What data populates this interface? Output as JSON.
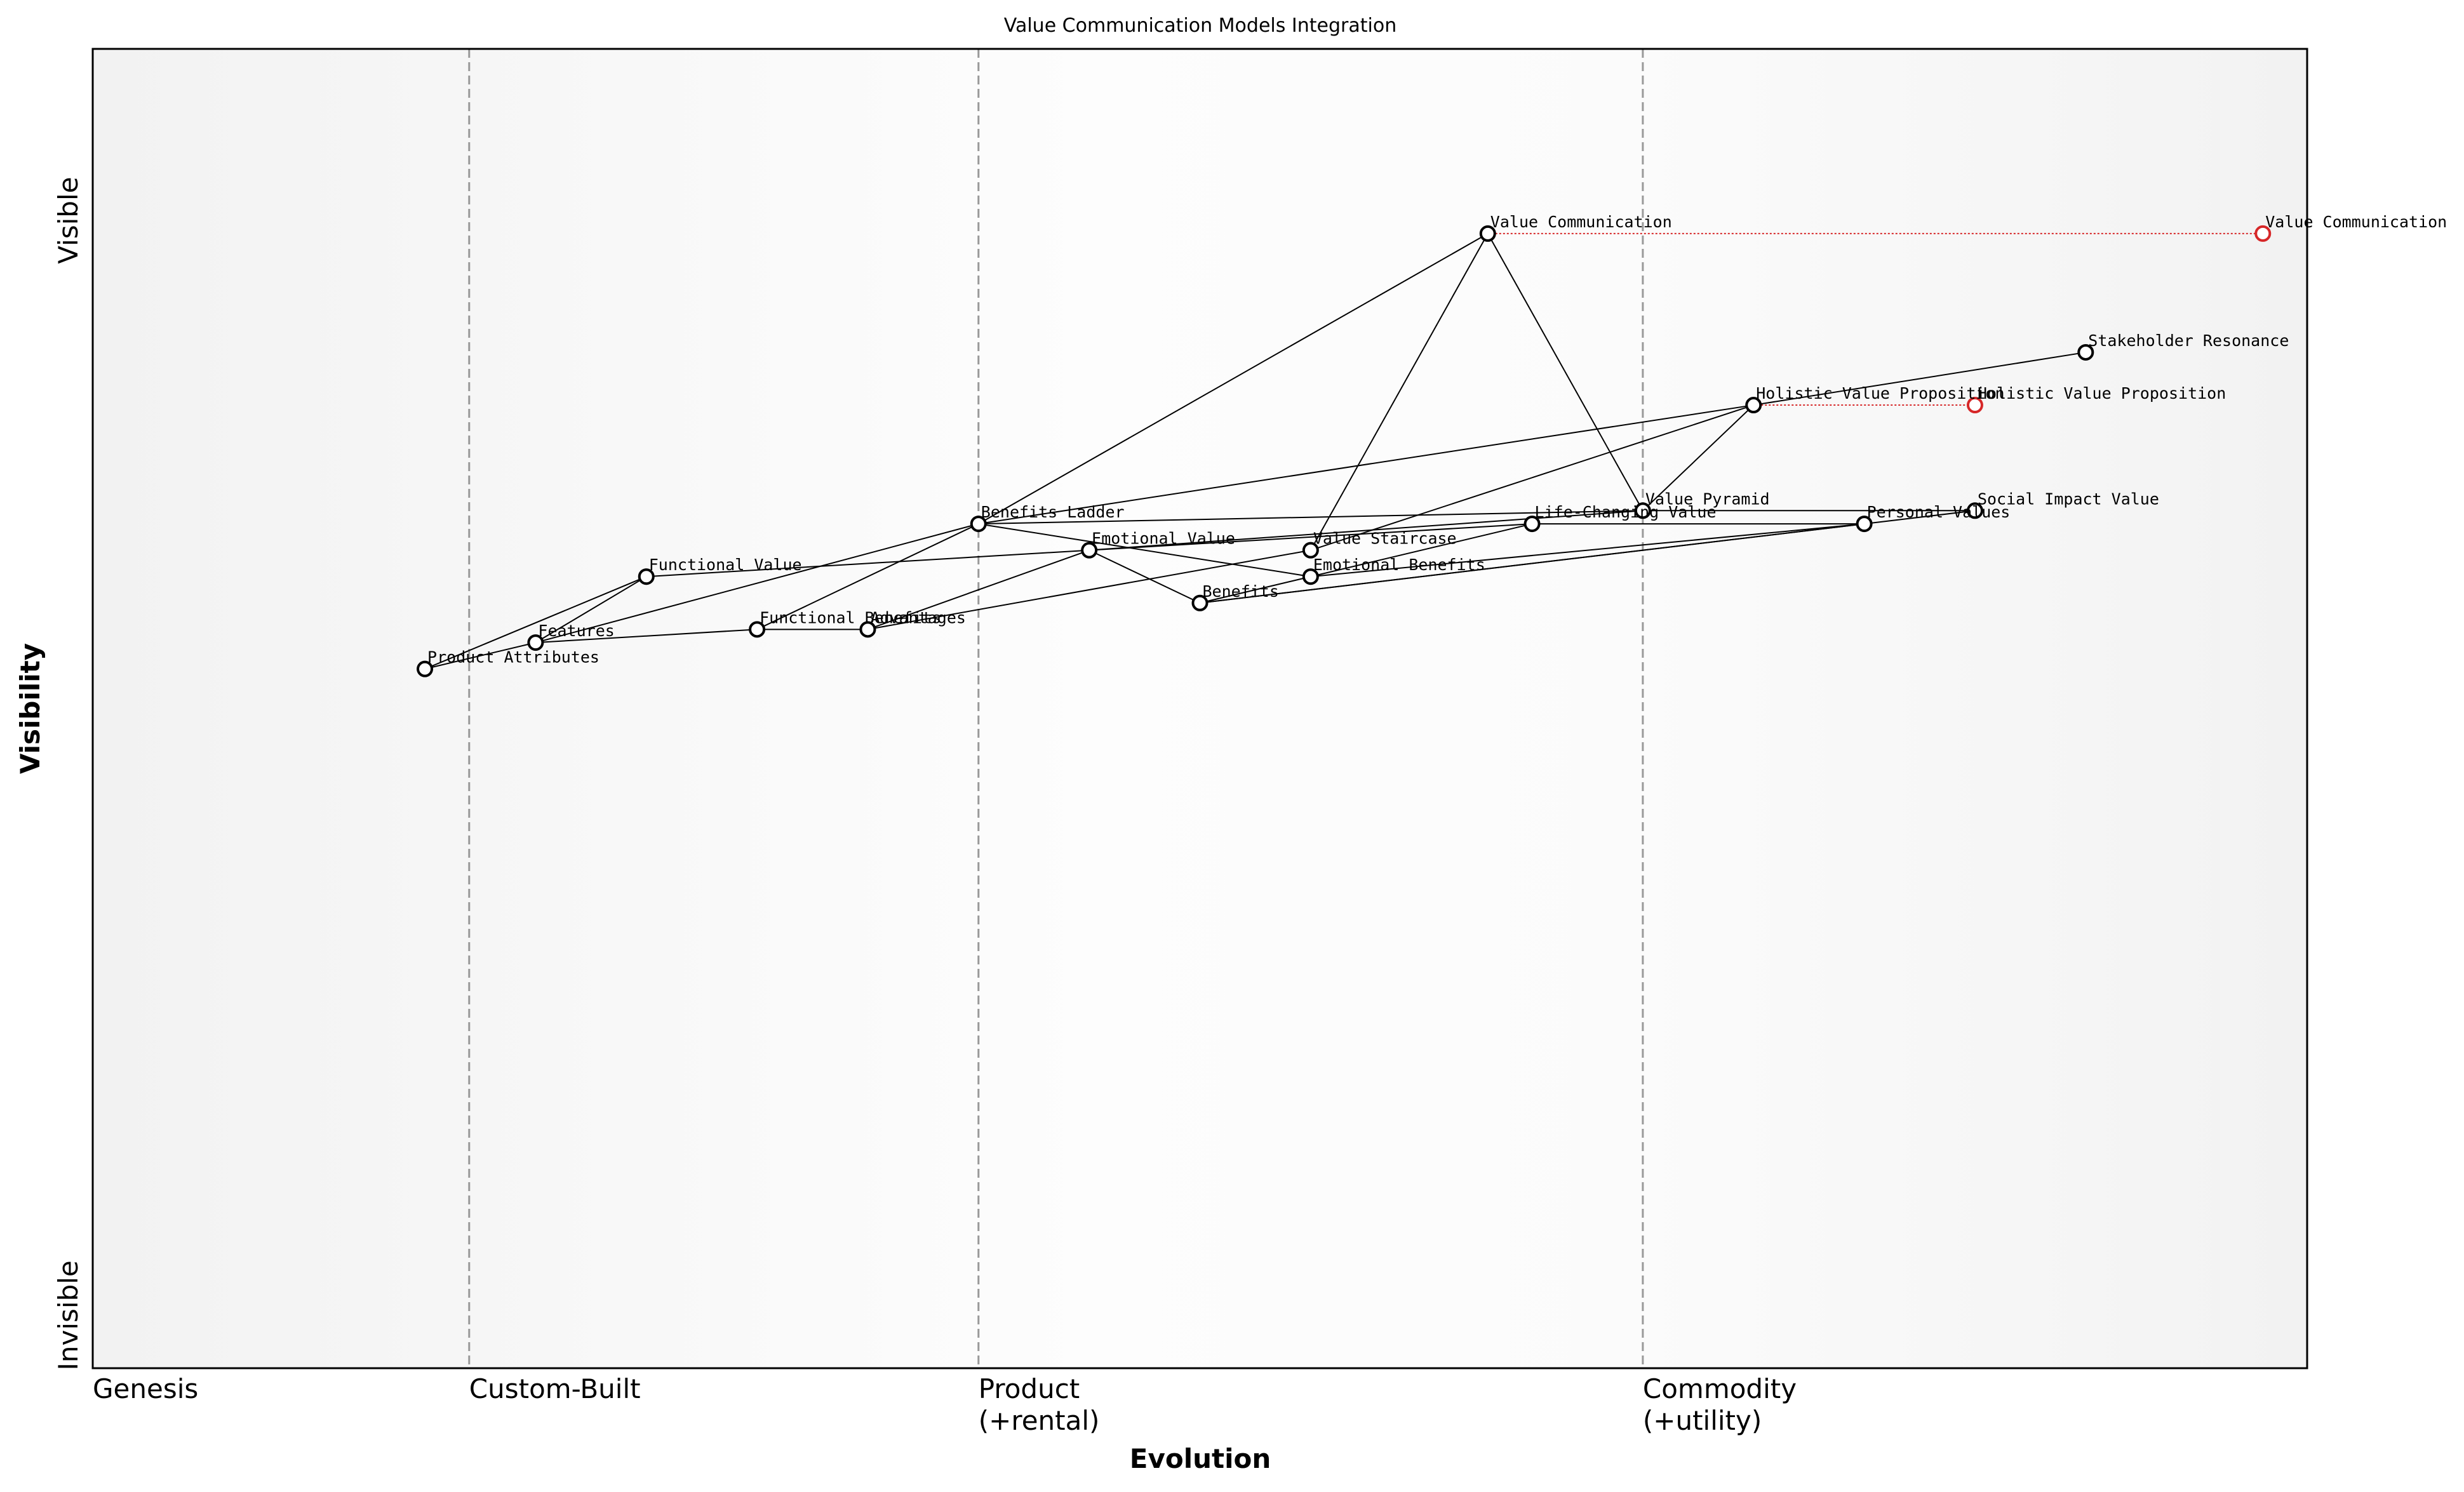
{
  "chart_data": {
    "type": "wardley",
    "title": "Value Communication Models Integration",
    "x_label": "Evolution",
    "y_label": "Visibility",
    "xlim": [
      0,
      1
    ],
    "ylim": [
      0,
      1
    ],
    "xticks": [
      {
        "value": 0,
        "label": "Genesis"
      },
      {
        "value": 0.17,
        "label": "Custom-Built"
      },
      {
        "value": 0.4,
        "label": "Product\n(+rental)"
      },
      {
        "value": 0.7,
        "label": "Commodity\n(+utility)"
      }
    ],
    "yticks": [
      {
        "value": 0.04,
        "label": "Invisible"
      },
      {
        "value": 0.87,
        "label": "Visible"
      }
    ],
    "nodes": [
      {
        "name": "Value Communication",
        "evolution": 0.63,
        "visibility": 0.86
      },
      {
        "name": "Stakeholder Resonance",
        "evolution": 0.9,
        "visibility": 0.77
      },
      {
        "name": "Holistic Value Proposition",
        "evolution": 0.75,
        "visibility": 0.73
      },
      {
        "name": "Value Pyramid",
        "evolution": 0.7,
        "visibility": 0.65
      },
      {
        "name": "Social Impact Value",
        "evolution": 0.85,
        "visibility": 0.65
      },
      {
        "name": "Life-Changing Value",
        "evolution": 0.65,
        "visibility": 0.64
      },
      {
        "name": "Personal Values",
        "evolution": 0.8,
        "visibility": 0.64
      },
      {
        "name": "Benefits Ladder",
        "evolution": 0.4,
        "visibility": 0.64
      },
      {
        "name": "Emotional Value",
        "evolution": 0.45,
        "visibility": 0.62
      },
      {
        "name": "Value Staircase",
        "evolution": 0.55,
        "visibility": 0.62
      },
      {
        "name": "Emotional Benefits",
        "evolution": 0.55,
        "visibility": 0.6
      },
      {
        "name": "Functional Value",
        "evolution": 0.25,
        "visibility": 0.6
      },
      {
        "name": "Benefits",
        "evolution": 0.5,
        "visibility": 0.58
      },
      {
        "name": "Functional Benefits",
        "evolution": 0.3,
        "visibility": 0.56
      },
      {
        "name": "Advantages",
        "evolution": 0.35,
        "visibility": 0.56
      },
      {
        "name": "Features",
        "evolution": 0.2,
        "visibility": 0.55
      },
      {
        "name": "Product Attributes",
        "evolution": 0.15,
        "visibility": 0.53
      }
    ],
    "links": [
      [
        "Value Communication",
        "Benefits Ladder"
      ],
      [
        "Value Communication",
        "Value Staircase"
      ],
      [
        "Value Communication",
        "Value Pyramid"
      ],
      [
        "Benefits Ladder",
        "Features"
      ],
      [
        "Benefits Ladder",
        "Functional Benefits"
      ],
      [
        "Benefits Ladder",
        "Emotional Benefits"
      ],
      [
        "Benefits Ladder",
        "Holistic Value Proposition"
      ],
      [
        "Benefits Ladder",
        "Value Pyramid"
      ],
      [
        "Product Attributes",
        "Features"
      ],
      [
        "Product Attributes",
        "Functional Value"
      ],
      [
        "Features",
        "Functional Value"
      ],
      [
        "Features",
        "Functional Benefits"
      ],
      [
        "Functional Benefits",
        "Advantages"
      ],
      [
        "Advantages",
        "Value Staircase"
      ],
      [
        "Advantages",
        "Emotional Value"
      ],
      [
        "Functional Value",
        "Life-Changing Value"
      ],
      [
        "Emotional Value",
        "Benefits"
      ],
      [
        "Emotional Value",
        "Value Pyramid"
      ],
      [
        "Benefits",
        "Life-Changing Value"
      ],
      [
        "Benefits",
        "Personal Values"
      ],
      [
        "Benefits",
        "Social Impact Value"
      ],
      [
        "Value Staircase",
        "Holistic Value Proposition"
      ],
      [
        "Value Pyramid",
        "Holistic Value Proposition"
      ],
      [
        "Value Pyramid",
        "Social Impact Value"
      ],
      [
        "Holistic Value Proposition",
        "Stakeholder Resonance"
      ],
      [
        "Life-Changing Value",
        "Personal Values"
      ],
      [
        "Emotional Benefits",
        "Personal Values"
      ]
    ],
    "evolutions": [
      {
        "name": "Value Communication",
        "evolution": 0.98,
        "color": "#d62728"
      },
      {
        "name": "Holistic Value Proposition",
        "evolution": 0.85,
        "color": "#d62728"
      }
    ]
  }
}
